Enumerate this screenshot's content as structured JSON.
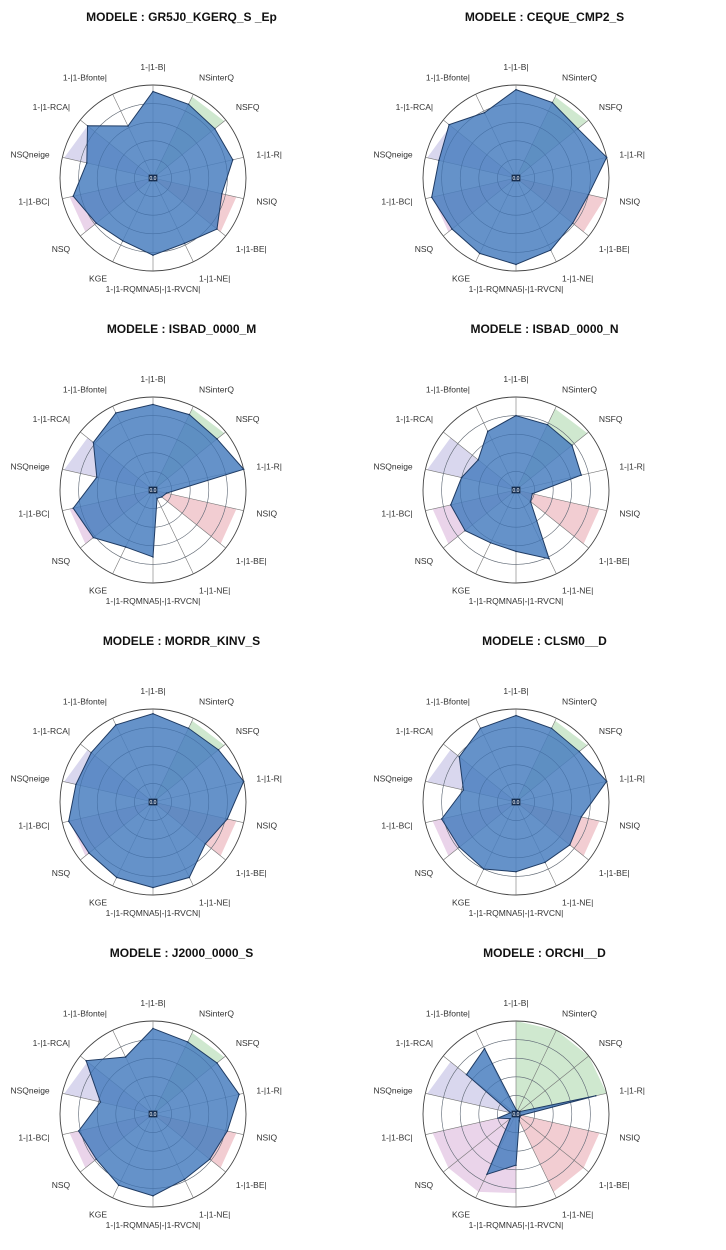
{
  "chart_data": {
    "type": "radar",
    "grid": true,
    "rlim": [
      0,
      1
    ],
    "axes": [
      "1-|1-B|",
      "NSinterQ",
      "NSFQ",
      "1-|1-R|",
      "NSIQ",
      "1-|1-BE|",
      "1-|1-NE|",
      "1-|1-RQMNA5|-|1-RVCN|",
      "KGE",
      "NSQ",
      "1-|1-BC|",
      "NSQneige",
      "1-|1-RCA|",
      "1-|1-Bfonte|"
    ],
    "center_label": "0.0",
    "sector_colors": {
      "green": "#cfe8cf",
      "red": "#f2cdd2",
      "pink": "#ead4ea",
      "lavender": "#d9d7ee",
      "polygon_fill": "#4a7fbf",
      "polygon_stroke": "#1f3b63"
    },
    "panels": [
      {
        "title": "MODELE : GR5J0_KGERQ_S _Ep",
        "values": [
          0.93,
          0.88,
          0.85,
          0.88,
          0.76,
          0.88,
          0.78,
          0.83,
          0.75,
          0.78,
          0.88,
          0.73,
          0.9,
          0.62
        ],
        "sectors": [
          {
            "color": "green",
            "axes": [
              1,
              2
            ],
            "values": [
              0.97,
              0.98
            ]
          },
          {
            "color": "red",
            "axes": [
              4,
              5
            ],
            "values": [
              0.92,
              0.93
            ]
          },
          {
            "color": "pink",
            "axes": [
              9,
              10
            ],
            "values": [
              0.93,
              0.92
            ]
          },
          {
            "color": "lavender",
            "axes": [
              11,
              12
            ],
            "values": [
              0.98,
              0.9
            ]
          }
        ]
      },
      {
        "title": "MODELE : CEQUE_CMP2_S",
        "values": [
          0.95,
          0.9,
          0.85,
          1.0,
          0.8,
          0.78,
          0.86,
          0.93,
          0.9,
          0.88,
          0.93,
          0.85,
          0.92,
          0.78
        ],
        "sectors": [
          {
            "color": "green",
            "axes": [
              1,
              2
            ],
            "values": [
              0.97,
              0.98
            ]
          },
          {
            "color": "red",
            "axes": [
              4,
              5
            ],
            "values": [
              0.98,
              0.93
            ]
          },
          {
            "color": "pink",
            "axes": [
              9,
              10
            ],
            "values": [
              0.93,
              0.92
            ]
          },
          {
            "color": "lavender",
            "axes": [
              11,
              12
            ],
            "values": [
              0.98,
              0.9
            ]
          }
        ]
      },
      {
        "title": "MODELE : ISBAD_0000_M",
        "values": [
          0.92,
          0.9,
          0.88,
          1.0,
          0.15,
          0.12,
          0.1,
          0.72,
          0.68,
          0.82,
          0.88,
          0.62,
          0.82,
          0.92
        ],
        "sectors": [
          {
            "color": "green",
            "axes": [
              1,
              2
            ],
            "values": [
              0.97,
              0.98
            ]
          },
          {
            "color": "red",
            "axes": [
              4,
              5
            ],
            "values": [
              0.92,
              0.93
            ]
          },
          {
            "color": "pink",
            "axes": [
              9,
              10
            ],
            "values": [
              0.93,
              0.92
            ]
          },
          {
            "color": "lavender",
            "axes": [
              11,
              12
            ],
            "values": [
              0.98,
              0.9
            ]
          }
        ]
      },
      {
        "title": "MODELE : ISBAD_0000_N",
        "values": [
          0.8,
          0.78,
          0.77,
          0.72,
          0.18,
          0.2,
          0.82,
          0.66,
          0.63,
          0.7,
          0.72,
          0.6,
          0.52,
          0.7
        ],
        "sectors": [
          {
            "color": "green",
            "axes": [
              1,
              2
            ],
            "values": [
              0.97,
              0.98
            ]
          },
          {
            "color": "green",
            "axes": [
              3,
              3
            ],
            "values": [
              1.0
            ]
          },
          {
            "color": "red",
            "axes": [
              4,
              5
            ],
            "values": [
              0.92,
              0.93
            ]
          },
          {
            "color": "pink",
            "axes": [
              9,
              10
            ],
            "values": [
              0.93,
              0.92
            ]
          },
          {
            "color": "lavender",
            "axes": [
              11,
              12
            ],
            "values": [
              0.98,
              0.9
            ]
          }
        ]
      },
      {
        "title": "MODELE : MORDR_KINV_S",
        "values": [
          0.95,
          0.88,
          0.9,
          1.0,
          0.82,
          0.72,
          0.9,
          0.92,
          0.9,
          0.88,
          0.93,
          0.85,
          0.85,
          0.92
        ],
        "sectors": [
          {
            "color": "green",
            "axes": [
              1,
              2
            ],
            "values": [
              0.97,
              0.98
            ]
          },
          {
            "color": "red",
            "axes": [
              4,
              5
            ],
            "values": [
              0.92,
              0.93
            ]
          },
          {
            "color": "pink",
            "axes": [
              9,
              10
            ],
            "values": [
              0.93,
              0.92
            ]
          },
          {
            "color": "lavender",
            "axes": [
              11,
              12
            ],
            "values": [
              0.98,
              0.9
            ]
          }
        ]
      },
      {
        "title": "MODELE : CLSM0__D",
        "values": [
          0.93,
          0.88,
          0.87,
          1.0,
          0.72,
          0.74,
          0.72,
          0.75,
          0.8,
          0.78,
          0.82,
          0.58,
          0.78,
          0.88
        ],
        "sectors": [
          {
            "color": "green",
            "axes": [
              1,
              2
            ],
            "values": [
              0.97,
              0.98
            ]
          },
          {
            "color": "red",
            "axes": [
              4,
              5
            ],
            "values": [
              0.92,
              0.93
            ]
          },
          {
            "color": "pink",
            "axes": [
              9,
              10
            ],
            "values": [
              0.93,
              0.92
            ]
          },
          {
            "color": "lavender",
            "axes": [
              11,
              12
            ],
            "values": [
              0.98,
              0.9
            ]
          }
        ]
      },
      {
        "title": "MODELE : J2000_0000_S",
        "values": [
          0.92,
          0.86,
          0.88,
          0.95,
          0.82,
          0.78,
          0.78,
          0.88,
          0.85,
          0.78,
          0.82,
          0.58,
          0.92,
          0.68
        ],
        "sectors": [
          {
            "color": "green",
            "axes": [
              1,
              2
            ],
            "values": [
              0.97,
              0.98
            ]
          },
          {
            "color": "red",
            "axes": [
              4,
              5
            ],
            "values": [
              0.92,
              0.93
            ]
          },
          {
            "color": "pink",
            "axes": [
              9,
              10
            ],
            "values": [
              0.93,
              0.92
            ]
          },
          {
            "color": "lavender",
            "axes": [
              11,
              12
            ],
            "values": [
              0.98,
              0.9
            ]
          }
        ]
      },
      {
        "title": "MODELE : ORCHI__D",
        "values": [
          0.05,
          0.04,
          0.04,
          0.88,
          0.06,
          0.05,
          0.08,
          0.55,
          0.72,
          0.08,
          0.2,
          0.06,
          0.68,
          0.78
        ],
        "sectors": [
          {
            "color": "green",
            "axes": [
              0,
              3
            ],
            "values": [
              1.0,
              1.0,
              1.0,
              1.0
            ]
          },
          {
            "color": "red",
            "axes": [
              4,
              6
            ],
            "values": [
              0.92,
              0.93,
              0.93
            ]
          },
          {
            "color": "pink",
            "axes": [
              7,
              10
            ],
            "values": [
              0.85,
              0.93,
              0.93,
              0.92
            ]
          },
          {
            "color": "lavender",
            "axes": [
              11,
              12
            ],
            "values": [
              0.98,
              0.9
            ]
          }
        ]
      }
    ]
  }
}
